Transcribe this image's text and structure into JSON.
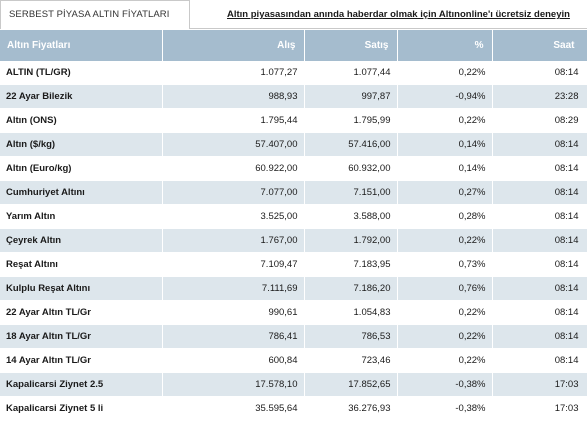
{
  "tab": {
    "label": "SERBEST PİYASA ALTIN FİYATLARI"
  },
  "promo": {
    "text": "Altın piyasasından anında haberdar olmak için Altınonline'ı ücretsiz deneyin"
  },
  "table": {
    "headers": {
      "name": "Altın Fiyatları",
      "buy": "Alış",
      "sell": "Satış",
      "pct": "%",
      "time": "Saat"
    },
    "rows": [
      {
        "name": "ALTIN (TL/GR)",
        "buy": "1.077,27",
        "sell": "1.077,44",
        "pct": "0,22%",
        "time": "08:14"
      },
      {
        "name": "22 Ayar Bilezik",
        "buy": "988,93",
        "sell": "997,87",
        "pct": "-0,94%",
        "time": "23:28"
      },
      {
        "name": "Altın (ONS)",
        "buy": "1.795,44",
        "sell": "1.795,99",
        "pct": "0,22%",
        "time": "08:29"
      },
      {
        "name": "Altın ($/kg)",
        "buy": "57.407,00",
        "sell": "57.416,00",
        "pct": "0,14%",
        "time": "08:14"
      },
      {
        "name": "Altın (Euro/kg)",
        "buy": "60.922,00",
        "sell": "60.932,00",
        "pct": "0,14%",
        "time": "08:14"
      },
      {
        "name": "Cumhuriyet Altını",
        "buy": "7.077,00",
        "sell": "7.151,00",
        "pct": "0,27%",
        "time": "08:14"
      },
      {
        "name": "Yarım Altın",
        "buy": "3.525,00",
        "sell": "3.588,00",
        "pct": "0,28%",
        "time": "08:14"
      },
      {
        "name": "Çeyrek Altın",
        "buy": "1.767,00",
        "sell": "1.792,00",
        "pct": "0,22%",
        "time": "08:14"
      },
      {
        "name": "Reşat Altını",
        "buy": "7.109,47",
        "sell": "7.183,95",
        "pct": "0,73%",
        "time": "08:14"
      },
      {
        "name": "Kulplu Reşat Altını",
        "buy": "7.111,69",
        "sell": "7.186,20",
        "pct": "0,76%",
        "time": "08:14"
      },
      {
        "name": "22 Ayar Altın TL/Gr",
        "buy": "990,61",
        "sell": "1.054,83",
        "pct": "0,22%",
        "time": "08:14"
      },
      {
        "name": "18 Ayar Altın TL/Gr",
        "buy": "786,41",
        "sell": "786,53",
        "pct": "0,22%",
        "time": "08:14"
      },
      {
        "name": "14 Ayar Altın TL/Gr",
        "buy": "600,84",
        "sell": "723,46",
        "pct": "0,22%",
        "time": "08:14"
      },
      {
        "name": "Kapalicarsi Ziynet 2.5",
        "buy": "17.578,10",
        "sell": "17.852,65",
        "pct": "-0,38%",
        "time": "17:03"
      },
      {
        "name": "Kapalicarsi Ziynet 5 li",
        "buy": "35.595,64",
        "sell": "36.276,93",
        "pct": "-0,38%",
        "time": "17:03"
      }
    ]
  },
  "colors": {
    "header_bg": "#a5bcce",
    "alt_row_bg": "#dde6ec"
  }
}
